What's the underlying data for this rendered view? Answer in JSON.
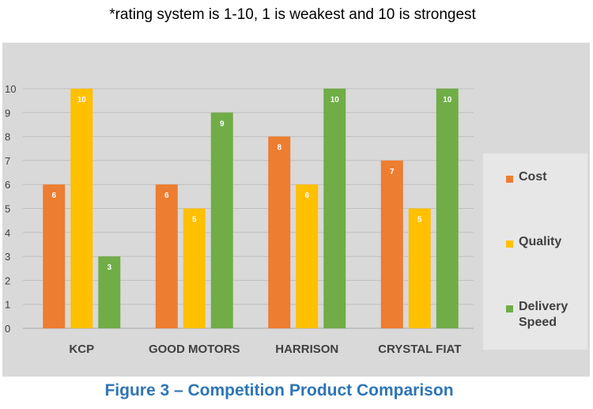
{
  "note": "*rating system is 1-10, 1 is weakest and 10 is strongest",
  "caption": "Figure 3 – Competition Product Comparison",
  "colors": {
    "Cost": "#ed7d31",
    "Quality": "#ffc000",
    "Delivery Speed": "#70ad47",
    "plot_background": "#d9d9d9",
    "legend_background": "#e7e7e7",
    "caption": "#2e75b6"
  },
  "chart_data": {
    "type": "bar",
    "categories": [
      "KCP",
      "GOOD MOTORS",
      "HARRISON",
      "CRYSTAL FIAT"
    ],
    "series": [
      {
        "name": "Cost",
        "values": [
          6,
          6,
          8,
          7
        ]
      },
      {
        "name": "Quality",
        "values": [
          10,
          5,
          6,
          5
        ]
      },
      {
        "name": "Delivery Speed",
        "values": [
          3,
          9,
          10,
          10
        ]
      }
    ],
    "ylim": [
      0,
      10
    ],
    "yticks": [
      "0",
      "1",
      "2",
      "3",
      "4",
      "5",
      "6",
      "7",
      "8",
      "9",
      "10"
    ],
    "grid": true,
    "data_labels": true,
    "legend_position": "right"
  },
  "legend": {
    "items": [
      {
        "label": "Cost",
        "lines": [
          "Cost"
        ]
      },
      {
        "label": "Quality",
        "lines": [
          "Quality"
        ]
      },
      {
        "label": "Delivery Speed",
        "lines": [
          "Delivery",
          "Speed"
        ]
      }
    ]
  }
}
